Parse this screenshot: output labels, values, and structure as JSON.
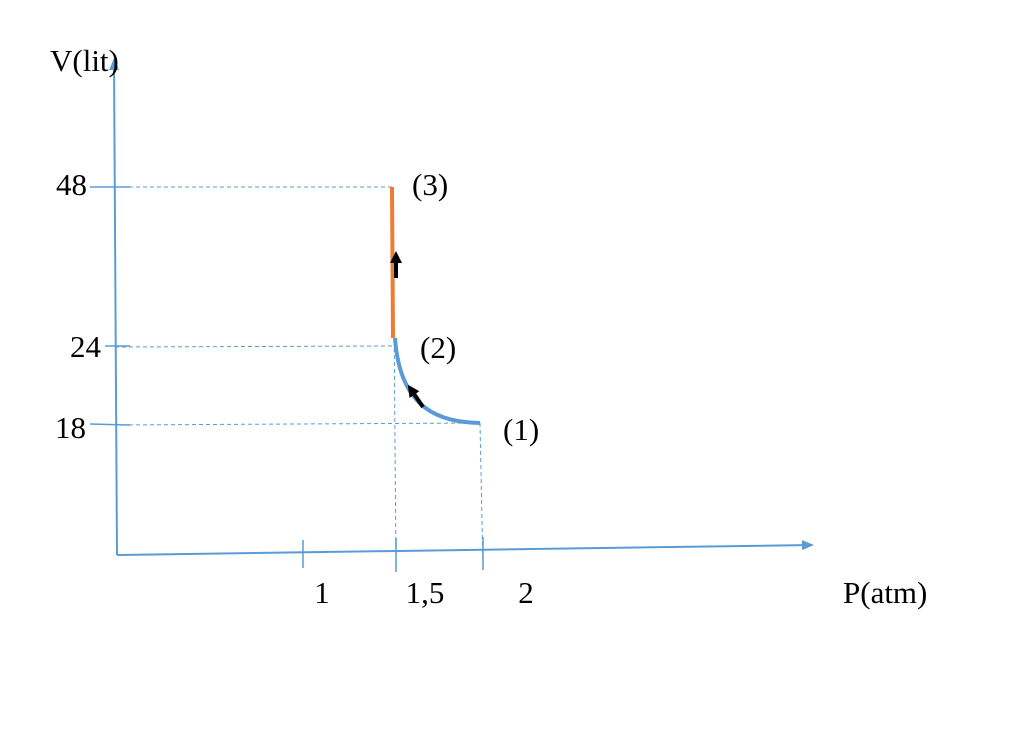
{
  "axes": {
    "y_label": "V(lit)",
    "x_label": "P(atm)",
    "y_ticks": [
      "48",
      "24",
      "18"
    ],
    "x_ticks": [
      "1",
      "1,5",
      "2"
    ]
  },
  "points": [
    "(1)",
    "(2)",
    "(3)"
  ]
}
